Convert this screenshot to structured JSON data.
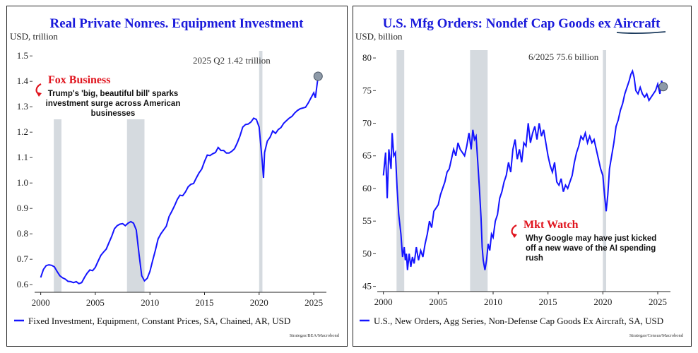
{
  "chart_data": [
    {
      "type": "line",
      "title": "Real Private Nonres. Equipment Investment",
      "ylabel": "USD, trillion",
      "xlim": [
        1999.7,
        2025.9
      ],
      "ylim": [
        0.57,
        1.52
      ],
      "yticks": [
        "0.6",
        "0.7",
        "0.8",
        "0.9",
        "1.0",
        "1.1",
        "1.2",
        "1.3",
        "1.4",
        "1.5"
      ],
      "xticks": [
        "2000",
        "2005",
        "2010",
        "2015",
        "2020",
        "2025"
      ],
      "recessions": [
        [
          2001.2,
          2001.9
        ],
        [
          2007.9,
          2009.5
        ],
        [
          2020.0,
          2020.3
        ]
      ],
      "annotation": "2025 Q2 1.42 trillion",
      "endpoint": {
        "x": 2025.4,
        "y": 1.42
      },
      "legend": "Fixed Investment, Equipment, Constant Prices, SA, Chained, AR, USD",
      "source": "Strategas/BEA/Macrobond",
      "news": {
        "source": "Fox Business",
        "text": [
          "Trump's 'big, beautiful bill' sparks",
          "investment surge across American",
          "businesses"
        ]
      },
      "series": [
        {
          "values": [
            [
              2000.0,
              0.628
            ],
            [
              2000.25,
              0.66
            ],
            [
              2000.5,
              0.675
            ],
            [
              2000.75,
              0.678
            ],
            [
              2001.0,
              0.676
            ],
            [
              2001.25,
              0.67
            ],
            [
              2001.5,
              0.652
            ],
            [
              2001.75,
              0.635
            ],
            [
              2002.0,
              0.627
            ],
            [
              2002.25,
              0.622
            ],
            [
              2002.5,
              0.613
            ],
            [
              2002.75,
              0.612
            ],
            [
              2003.0,
              0.608
            ],
            [
              2003.25,
              0.612
            ],
            [
              2003.5,
              0.604
            ],
            [
              2003.75,
              0.608
            ],
            [
              2004.0,
              0.628
            ],
            [
              2004.25,
              0.645
            ],
            [
              2004.5,
              0.658
            ],
            [
              2004.75,
              0.655
            ],
            [
              2005.0,
              0.668
            ],
            [
              2005.25,
              0.692
            ],
            [
              2005.5,
              0.715
            ],
            [
              2005.75,
              0.728
            ],
            [
              2006.0,
              0.74
            ],
            [
              2006.25,
              0.765
            ],
            [
              2006.5,
              0.79
            ],
            [
              2006.75,
              0.82
            ],
            [
              2007.0,
              0.832
            ],
            [
              2007.25,
              0.838
            ],
            [
              2007.5,
              0.84
            ],
            [
              2007.75,
              0.832
            ],
            [
              2008.0,
              0.842
            ],
            [
              2008.25,
              0.848
            ],
            [
              2008.5,
              0.842
            ],
            [
              2008.75,
              0.815
            ],
            [
              2009.0,
              0.72
            ],
            [
              2009.25,
              0.635
            ],
            [
              2009.5,
              0.615
            ],
            [
              2009.75,
              0.625
            ],
            [
              2010.0,
              0.652
            ],
            [
              2010.25,
              0.695
            ],
            [
              2010.5,
              0.735
            ],
            [
              2010.75,
              0.78
            ],
            [
              2011.0,
              0.8
            ],
            [
              2011.25,
              0.815
            ],
            [
              2011.5,
              0.83
            ],
            [
              2011.75,
              0.868
            ],
            [
              2012.0,
              0.888
            ],
            [
              2012.25,
              0.91
            ],
            [
              2012.5,
              0.935
            ],
            [
              2012.75,
              0.952
            ],
            [
              2013.0,
              0.95
            ],
            [
              2013.25,
              0.965
            ],
            [
              2013.5,
              0.985
            ],
            [
              2013.75,
              0.995
            ],
            [
              2014.0,
              0.998
            ],
            [
              2014.25,
              1.02
            ],
            [
              2014.5,
              1.04
            ],
            [
              2014.75,
              1.055
            ],
            [
              2015.0,
              1.085
            ],
            [
              2015.25,
              1.11
            ],
            [
              2015.5,
              1.108
            ],
            [
              2015.75,
              1.115
            ],
            [
              2016.0,
              1.12
            ],
            [
              2016.25,
              1.14
            ],
            [
              2016.5,
              1.128
            ],
            [
              2016.75,
              1.128
            ],
            [
              2017.0,
              1.118
            ],
            [
              2017.25,
              1.118
            ],
            [
              2017.5,
              1.125
            ],
            [
              2017.75,
              1.135
            ],
            [
              2018.0,
              1.158
            ],
            [
              2018.25,
              1.185
            ],
            [
              2018.5,
              1.22
            ],
            [
              2018.75,
              1.23
            ],
            [
              2019.0,
              1.232
            ],
            [
              2019.25,
              1.24
            ],
            [
              2019.5,
              1.255
            ],
            [
              2019.75,
              1.25
            ],
            [
              2020.0,
              1.22
            ],
            [
              2020.25,
              1.1
            ],
            [
              2020.4,
              1.02
            ],
            [
              2020.5,
              1.12
            ],
            [
              2020.75,
              1.165
            ],
            [
              2021.0,
              1.18
            ],
            [
              2021.25,
              1.205
            ],
            [
              2021.5,
              1.195
            ],
            [
              2021.75,
              1.21
            ],
            [
              2022.0,
              1.218
            ],
            [
              2022.25,
              1.235
            ],
            [
              2022.5,
              1.245
            ],
            [
              2022.75,
              1.255
            ],
            [
              2023.0,
              1.262
            ],
            [
              2023.25,
              1.275
            ],
            [
              2023.5,
              1.285
            ],
            [
              2023.75,
              1.292
            ],
            [
              2024.0,
              1.295
            ],
            [
              2024.25,
              1.298
            ],
            [
              2024.5,
              1.315
            ],
            [
              2024.75,
              1.335
            ],
            [
              2025.0,
              1.355
            ],
            [
              2025.15,
              1.335
            ],
            [
              2025.4,
              1.42
            ]
          ]
        }
      ]
    },
    {
      "type": "line",
      "title": "U.S. Mfg Orders: Nondef Cap Goods ex Aircraft",
      "ylabel": "USD, billion",
      "xlim": [
        1999.7,
        2025.9
      ],
      "ylim": [
        44.2,
        81.2
      ],
      "yticks": [
        "45",
        "50",
        "55",
        "60",
        "65",
        "70",
        "75",
        "80"
      ],
      "xticks": [
        "2000",
        "2005",
        "2010",
        "2015",
        "2020",
        "2025"
      ],
      "recessions": [
        [
          2001.2,
          2001.9
        ],
        [
          2007.9,
          2009.5
        ],
        [
          2020.0,
          2020.3
        ]
      ],
      "annotation": "6/2025 75.6 billion",
      "endpoint": {
        "x": 2025.5,
        "y": 75.6
      },
      "legend": "U.S., New Orders, Agg Series, Non-Defense Cap Goods Ex Aircraft, SA, USD",
      "source": "Strategas/Census/Macrobond",
      "news": {
        "source": "Mkt Watch",
        "text": [
          "Why Google may have just kicked",
          "off a new wave of the AI spending",
          "rush"
        ]
      },
      "series": [
        {
          "values": [
            [
              2000.0,
              62
            ],
            [
              2000.2,
              65.5
            ],
            [
              2000.35,
              58.5
            ],
            [
              2000.5,
              66
            ],
            [
              2000.7,
              63
            ],
            [
              2000.8,
              68.5
            ],
            [
              2000.95,
              65
            ],
            [
              2001.1,
              65.5
            ],
            [
              2001.25,
              60
            ],
            [
              2001.4,
              56
            ],
            [
              2001.6,
              53
            ],
            [
              2001.75,
              49.5
            ],
            [
              2001.9,
              51
            ],
            [
              2002.0,
              49
            ],
            [
              2002.1,
              50
            ],
            [
              2002.2,
              47.5
            ],
            [
              2002.35,
              50
            ],
            [
              2002.5,
              48
            ],
            [
              2002.65,
              49.5
            ],
            [
              2002.8,
              48.5
            ],
            [
              2003.0,
              51
            ],
            [
              2003.2,
              49
            ],
            [
              2003.4,
              50.5
            ],
            [
              2003.6,
              49.5
            ],
            [
              2003.8,
              51.5
            ],
            [
              2004.0,
              53
            ],
            [
              2004.2,
              55
            ],
            [
              2004.4,
              54
            ],
            [
              2004.6,
              56.5
            ],
            [
              2004.8,
              57
            ],
            [
              2005.0,
              57.5
            ],
            [
              2005.2,
              59
            ],
            [
              2005.4,
              60
            ],
            [
              2005.6,
              61
            ],
            [
              2005.8,
              62.5
            ],
            [
              2006.0,
              63
            ],
            [
              2006.2,
              64.5
            ],
            [
              2006.4,
              66
            ],
            [
              2006.6,
              65
            ],
            [
              2006.8,
              67
            ],
            [
              2007.0,
              66
            ],
            [
              2007.2,
              65.5
            ],
            [
              2007.4,
              65
            ],
            [
              2007.6,
              66.5
            ],
            [
              2007.8,
              68.5
            ],
            [
              2008.0,
              66
            ],
            [
              2008.15,
              69
            ],
            [
              2008.3,
              67.5
            ],
            [
              2008.45,
              68
            ],
            [
              2008.6,
              64
            ],
            [
              2008.75,
              60
            ],
            [
              2008.9,
              55.5
            ],
            [
              2009.0,
              51
            ],
            [
              2009.1,
              49
            ],
            [
              2009.25,
              47.5
            ],
            [
              2009.4,
              49
            ],
            [
              2009.55,
              51.5
            ],
            [
              2009.7,
              50.5
            ],
            [
              2009.85,
              53
            ],
            [
              2010.0,
              52.5
            ],
            [
              2010.2,
              55
            ],
            [
              2010.4,
              56
            ],
            [
              2010.6,
              58.5
            ],
            [
              2010.8,
              59.5
            ],
            [
              2011.0,
              61
            ],
            [
              2011.2,
              62
            ],
            [
              2011.4,
              64
            ],
            [
              2011.6,
              62.5
            ],
            [
              2011.8,
              66
            ],
            [
              2012.0,
              67.5
            ],
            [
              2012.2,
              64.5
            ],
            [
              2012.4,
              66
            ],
            [
              2012.6,
              64
            ],
            [
              2012.8,
              67
            ],
            [
              2013.0,
              66.5
            ],
            [
              2013.2,
              70
            ],
            [
              2013.4,
              67
            ],
            [
              2013.6,
              68.5
            ],
            [
              2013.8,
              69.5
            ],
            [
              2014.0,
              67.5
            ],
            [
              2014.2,
              70
            ],
            [
              2014.4,
              68
            ],
            [
              2014.6,
              69
            ],
            [
              2014.8,
              67
            ],
            [
              2015.0,
              65
            ],
            [
              2015.2,
              63.5
            ],
            [
              2015.4,
              62.5
            ],
            [
              2015.6,
              64
            ],
            [
              2015.8,
              61
            ],
            [
              2016.0,
              60.5
            ],
            [
              2016.2,
              61.5
            ],
            [
              2016.4,
              59.5
            ],
            [
              2016.6,
              60.5
            ],
            [
              2016.8,
              60
            ],
            [
              2017.0,
              61
            ],
            [
              2017.2,
              62
            ],
            [
              2017.4,
              64
            ],
            [
              2017.6,
              65.5
            ],
            [
              2017.8,
              66.5
            ],
            [
              2018.0,
              68
            ],
            [
              2018.2,
              67.5
            ],
            [
              2018.4,
              68.5
            ],
            [
              2018.6,
              67
            ],
            [
              2018.8,
              68
            ],
            [
              2019.0,
              67
            ],
            [
              2019.2,
              67.5
            ],
            [
              2019.4,
              66
            ],
            [
              2019.6,
              64.5
            ],
            [
              2019.8,
              63
            ],
            [
              2020.0,
              62
            ],
            [
              2020.15,
              59
            ],
            [
              2020.3,
              56.5
            ],
            [
              2020.45,
              59
            ],
            [
              2020.6,
              63
            ],
            [
              2020.8,
              65
            ],
            [
              2021.0,
              67
            ],
            [
              2021.2,
              69.5
            ],
            [
              2021.4,
              70.5
            ],
            [
              2021.6,
              72
            ],
            [
              2021.8,
              73
            ],
            [
              2022.0,
              74.5
            ],
            [
              2022.2,
              75.5
            ],
            [
              2022.4,
              76.5
            ],
            [
              2022.55,
              77.5
            ],
            [
              2022.7,
              78
            ],
            [
              2022.85,
              77
            ],
            [
              2023.0,
              75
            ],
            [
              2023.2,
              74.5
            ],
            [
              2023.4,
              75.5
            ],
            [
              2023.6,
              74.5
            ],
            [
              2023.8,
              74
            ],
            [
              2024.0,
              74.5
            ],
            [
              2024.2,
              73.5
            ],
            [
              2024.4,
              74
            ],
            [
              2024.6,
              74.5
            ],
            [
              2024.8,
              75
            ],
            [
              2025.0,
              76
            ],
            [
              2025.2,
              74.5
            ],
            [
              2025.35,
              76.5
            ],
            [
              2025.5,
              75.6
            ]
          ]
        }
      ]
    }
  ]
}
